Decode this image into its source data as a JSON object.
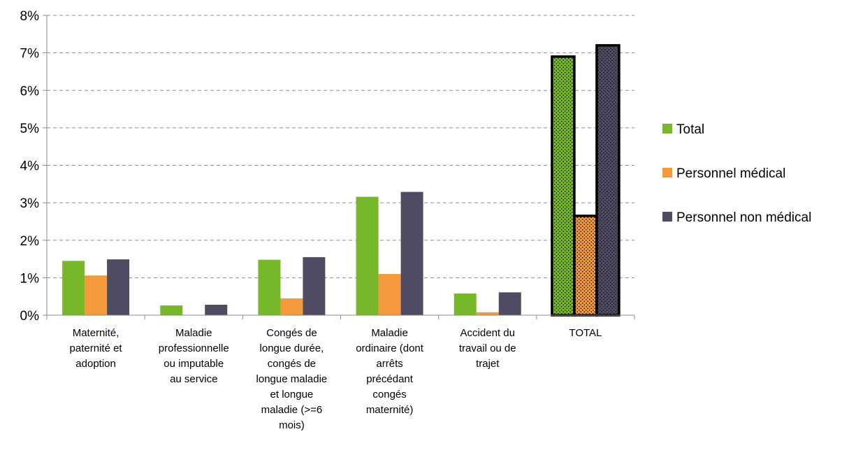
{
  "chart_data": {
    "type": "bar",
    "categories": [
      [
        "Maternité,",
        "paternité et",
        "adoption"
      ],
      [
        "Maladie",
        "professionnelle",
        "ou imputable",
        "au service"
      ],
      [
        "Congés de",
        "longue durée,",
        "congés de",
        "longue maladie",
        "et longue",
        "maladie (>=6",
        "mois)"
      ],
      [
        "Maladie",
        "ordinaire (dont",
        "arrêts",
        "précédant",
        "congés",
        "maternité)"
      ],
      [
        "Accident du",
        "travail ou de",
        "trajet"
      ],
      [
        "TOTAL"
      ]
    ],
    "series": [
      {
        "name": "Total",
        "color": "#77b82a",
        "values": [
          1.45,
          0.26,
          1.48,
          3.16,
          0.58,
          6.9
        ]
      },
      {
        "name": "Personnel médical",
        "color": "#f49a3c",
        "values": [
          1.06,
          0.0,
          0.45,
          1.1,
          0.08,
          2.65
        ]
      },
      {
        "name": "Personnel non médical",
        "color": "#504b63",
        "values": [
          1.49,
          0.28,
          1.55,
          3.29,
          0.61,
          7.2
        ]
      }
    ],
    "highlight_category": "TOTAL",
    "highlight_style": "dotted pattern with thick black outline",
    "ylim": [
      0,
      8
    ],
    "yticks": [
      "0%",
      "1%",
      "2%",
      "3%",
      "4%",
      "5%",
      "6%",
      "7%",
      "8%"
    ],
    "grid": "horizontal dashed",
    "legend": "right"
  }
}
